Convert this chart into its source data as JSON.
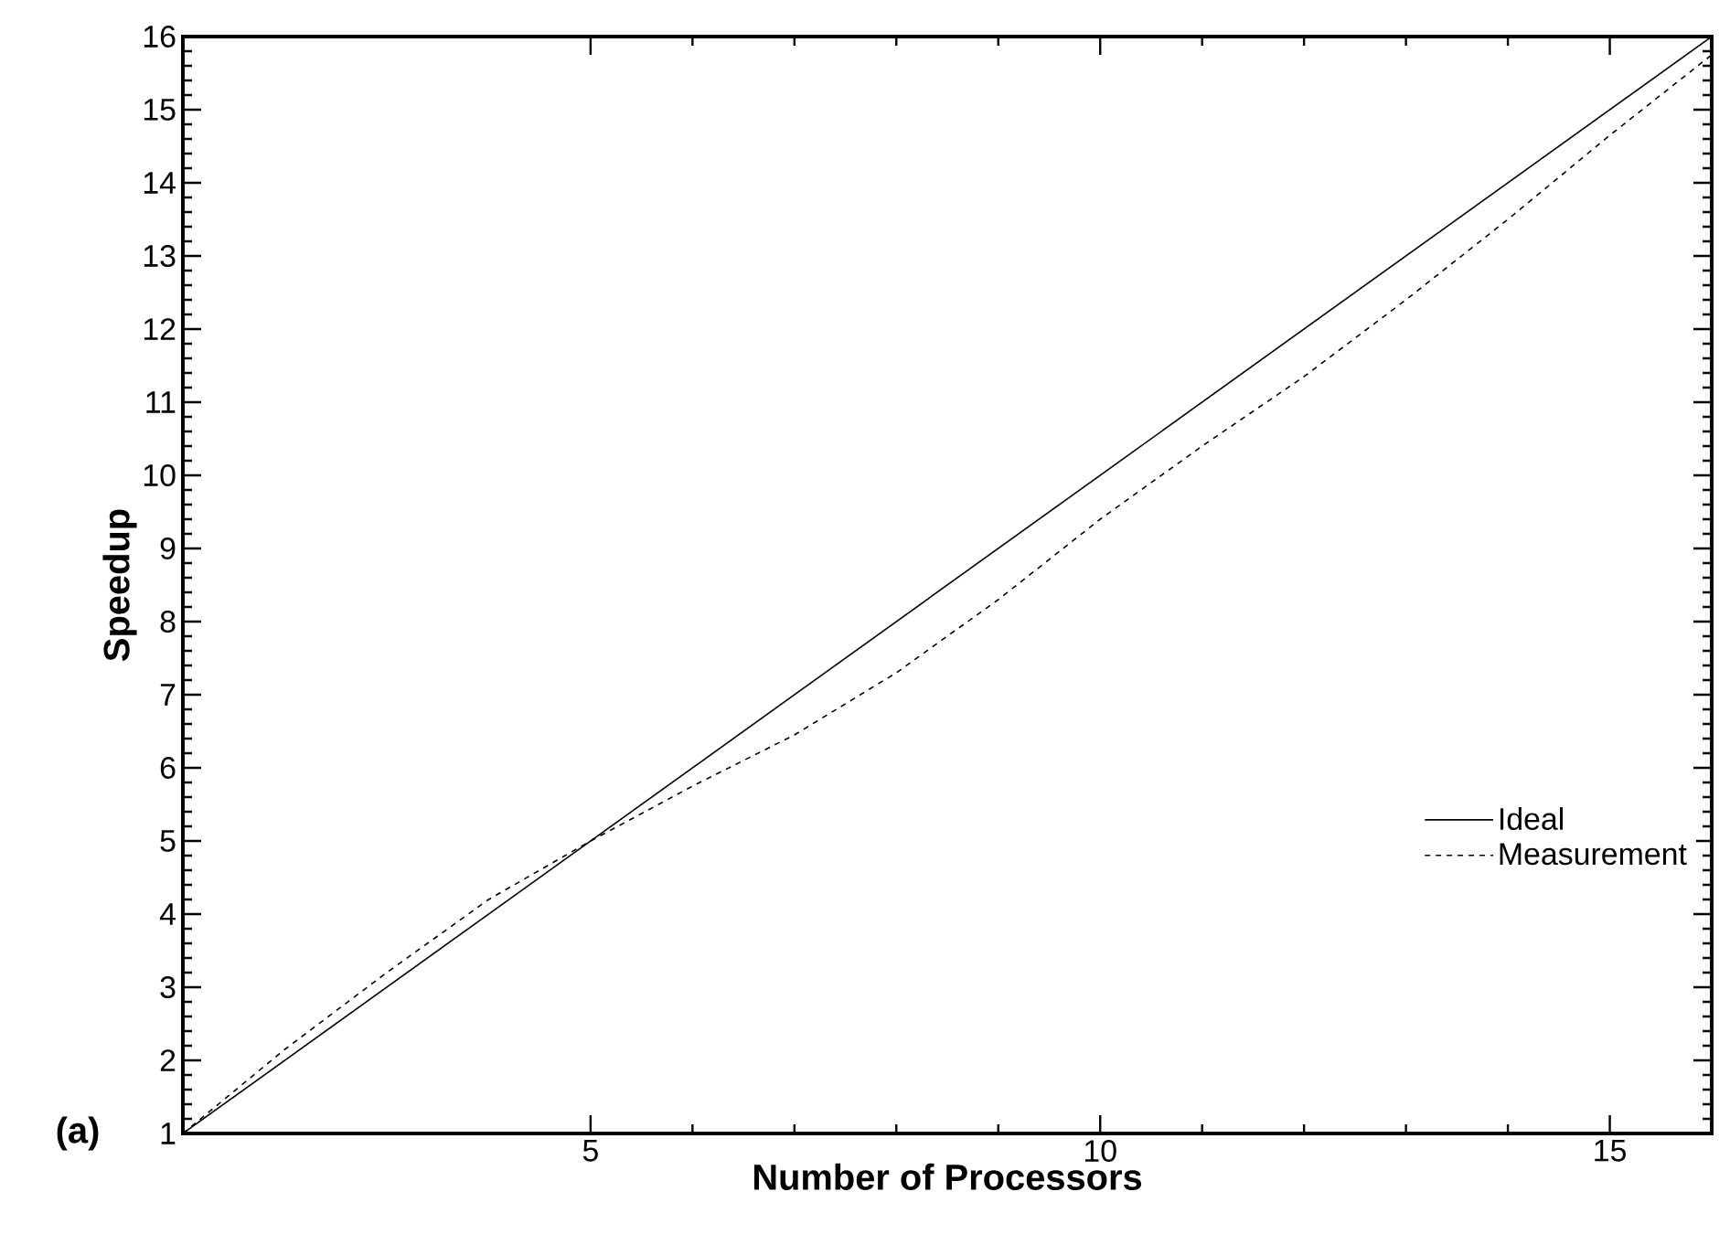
{
  "chart_data": {
    "type": "line",
    "xlabel": "Number of Processors",
    "ylabel": "Speedup",
    "xlim": [
      1,
      16
    ],
    "ylim": [
      1,
      16
    ],
    "xticks": [
      5,
      10,
      15
    ],
    "yticks": [
      1,
      2,
      3,
      4,
      5,
      6,
      7,
      8,
      9,
      10,
      11,
      12,
      13,
      14,
      15,
      16
    ],
    "legend": "right",
    "grid": false,
    "marker": "none",
    "annotations": [
      "(a)"
    ],
    "series": [
      {
        "name": "Ideal",
        "color": "#000000",
        "line_style": "solid",
        "x": [
          1,
          16
        ],
        "values": [
          1,
          16
        ]
      },
      {
        "name": "Measurement",
        "color": "#000000",
        "line_style": "dashed",
        "x": [
          1,
          2,
          3,
          4,
          5,
          6,
          7,
          8,
          9,
          10,
          11,
          12,
          13,
          14,
          15,
          16
        ],
        "values": [
          1,
          2.15,
          3.2,
          4.2,
          5.0,
          5.75,
          6.45,
          7.3,
          8.3,
          9.4,
          10.4,
          11.35,
          12.4,
          13.5,
          14.65,
          15.75
        ]
      }
    ]
  }
}
